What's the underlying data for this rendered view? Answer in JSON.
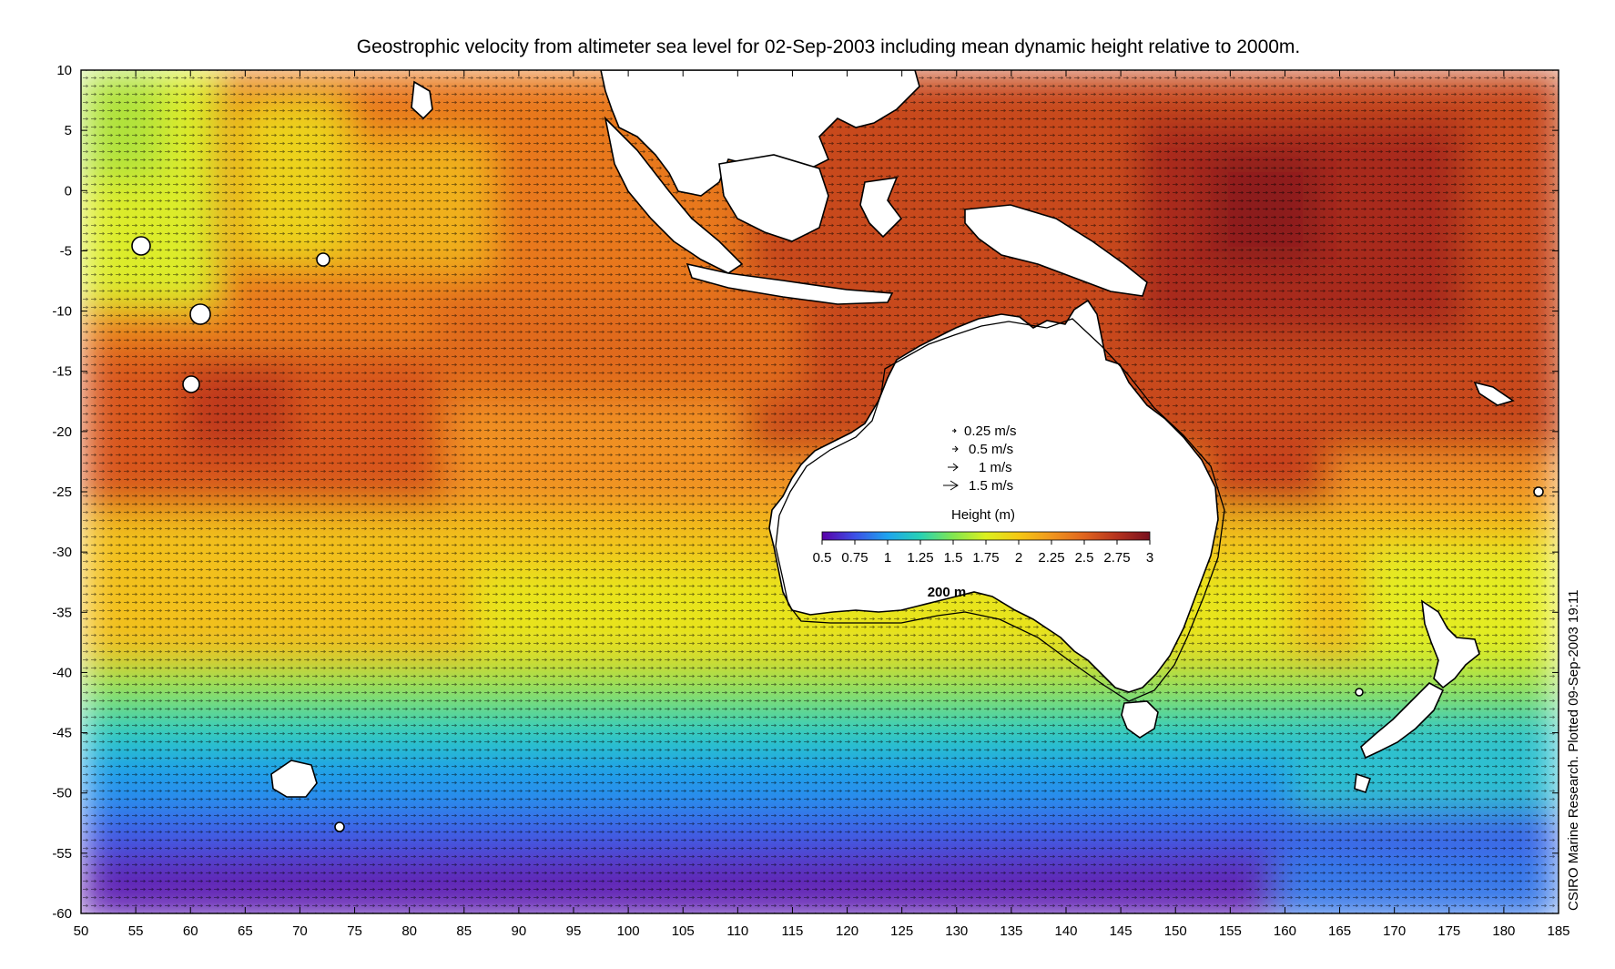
{
  "title": "Geostrophic velocity from altimeter sea level for 02-Sep-2003 including mean dynamic height relative to 2000m.",
  "map": {
    "lon_range": [
      50,
      185
    ],
    "lat_range": [
      -60,
      10
    ],
    "x_ticks": [
      50,
      55,
      60,
      65,
      70,
      75,
      80,
      85,
      90,
      95,
      100,
      105,
      110,
      115,
      120,
      125,
      130,
      135,
      140,
      145,
      150,
      155,
      160,
      165,
      170,
      175,
      180,
      185
    ],
    "y_ticks": [
      10,
      5,
      0,
      -5,
      -10,
      -15,
      -20,
      -25,
      -30,
      -35,
      -40,
      -45,
      -50,
      -55,
      -60
    ],
    "contour_label": "200 m"
  },
  "velocity_legend": {
    "entries": [
      {
        "speed": 0.25,
        "label": "0.25 m/s"
      },
      {
        "speed": 0.5,
        "label": "0.5 m/s"
      },
      {
        "speed": 1,
        "label": "1 m/s"
      },
      {
        "speed": 1.5,
        "label": "1.5 m/s"
      }
    ]
  },
  "colorbar": {
    "title": "Height (m)",
    "range": [
      0.5,
      3
    ],
    "tick_labels": [
      "0.5",
      "0.75",
      "1",
      "1.25",
      "1.5",
      "1.75",
      "2",
      "2.25",
      "2.5",
      "2.75",
      "3"
    ],
    "colors": [
      "#5a00a8",
      "#3c50e6",
      "#1ea4ee",
      "#28d2b4",
      "#82e650",
      "#dcf01e",
      "#f5c814",
      "#f0961e",
      "#e0641e",
      "#b4321e",
      "#780f1e"
    ]
  },
  "credit": "CSIRO Marine Research. Plotted 09-Sep-2003 19:11"
}
